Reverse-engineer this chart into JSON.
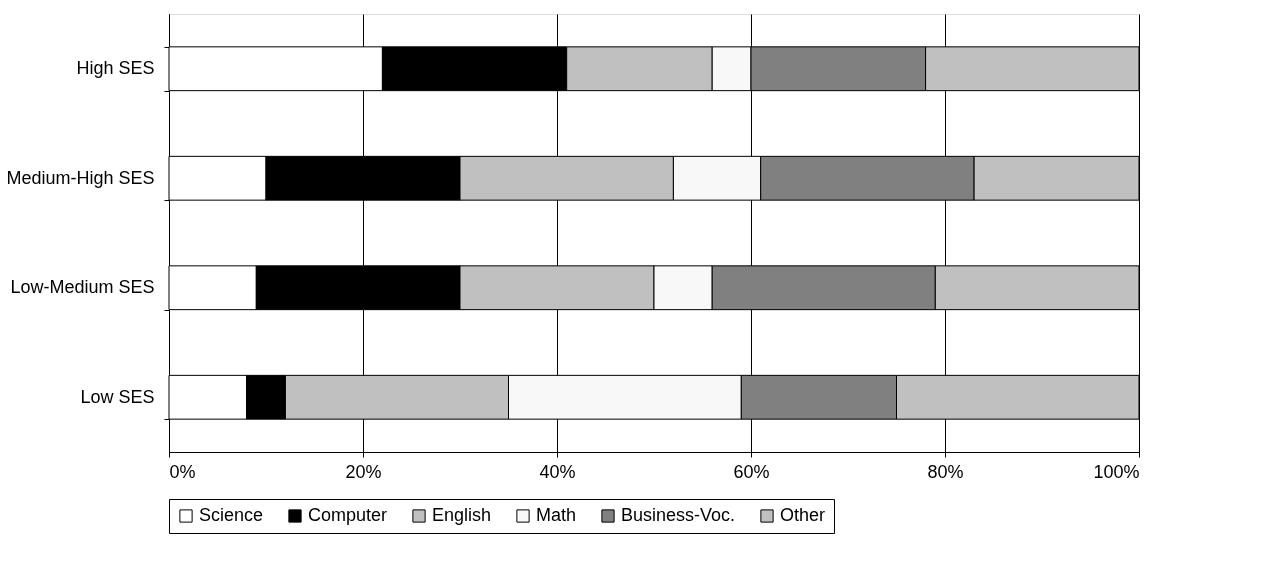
{
  "chart_data": {
    "type": "bar",
    "orientation": "horizontal",
    "stacked": true,
    "categories": [
      "High SES",
      "Medium-High SES",
      "Low-Medium SES",
      "Low SES"
    ],
    "series": [
      {
        "name": "Science",
        "color": "#ffffff",
        "values": [
          22,
          10,
          9,
          8
        ]
      },
      {
        "name": "Computer",
        "color": "#000000",
        "values": [
          19,
          20,
          21,
          4
        ]
      },
      {
        "name": "English",
        "color": "#c0c0c0",
        "values": [
          15,
          22,
          20,
          23
        ]
      },
      {
        "name": "Math",
        "color": "#f8f8f8",
        "values": [
          4,
          9,
          6,
          24
        ]
      },
      {
        "name": "Business-Voc.",
        "color": "#808080",
        "values": [
          18,
          22,
          23,
          16
        ]
      },
      {
        "name": "Other",
        "color": "#c0c0c0",
        "values": [
          22,
          17,
          21,
          25
        ]
      }
    ],
    "xlim": [
      0,
      100
    ],
    "xticks": [
      {
        "value": 0,
        "label": "0%"
      },
      {
        "value": 20,
        "label": "20%"
      },
      {
        "value": 40,
        "label": "40%"
      },
      {
        "value": 60,
        "label": "60%"
      },
      {
        "value": 80,
        "label": "80%"
      },
      {
        "value": 100,
        "label": "100%"
      }
    ],
    "grid": "x",
    "legend": "bottom"
  }
}
